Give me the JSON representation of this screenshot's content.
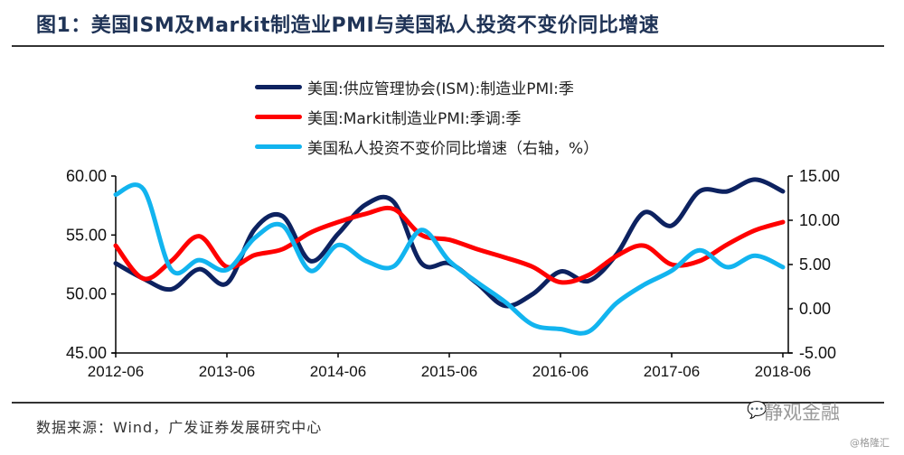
{
  "title": "图1：美国ISM及Markit制造业PMI与美国私人投资不变价同比增速",
  "source": "数据来源：Wind，广发证券发展研究中心",
  "watermark": "静观金融",
  "watermark_icon": "wechat-icon",
  "credit": "@格隆汇",
  "colors": {
    "ism": "#0d2260",
    "markit": "#ff0000",
    "invest": "#12b4ef"
  },
  "chart_data": {
    "type": "line",
    "title": "美国ISM及Markit制造业PMI与美国私人投资不变价同比增速",
    "xlabel": "",
    "ylabel": "",
    "x": [
      "2012-06",
      "2012-09",
      "2012-12",
      "2013-03",
      "2013-06",
      "2013-09",
      "2013-12",
      "2014-03",
      "2014-06",
      "2014-09",
      "2014-12",
      "2015-03",
      "2015-06",
      "2015-09",
      "2015-12",
      "2016-03",
      "2016-06",
      "2016-09",
      "2016-12",
      "2017-03",
      "2017-06",
      "2017-09",
      "2017-12",
      "2018-03",
      "2018-06"
    ],
    "x_tick_labels": [
      "2012-06",
      "2013-06",
      "2014-06",
      "2015-06",
      "2016-06",
      "2017-06",
      "2018-06"
    ],
    "ylim": [
      45,
      60
    ],
    "y_ticks": [
      "45.00",
      "50.00",
      "55.00",
      "60.00"
    ],
    "y2lim": [
      -5,
      15
    ],
    "y2_ticks": [
      "-5.00",
      "0.00",
      "5.00",
      "10.00",
      "15.00"
    ],
    "grid": false,
    "legend_position": "top-center",
    "series": [
      {
        "name": "美国:供应管理协会(ISM):制造业PMI:季",
        "axis": "left",
        "color": "#0d2260",
        "values": [
          52.6,
          51.3,
          50.4,
          52.1,
          50.9,
          55.5,
          56.6,
          52.8,
          55.1,
          57.6,
          57.8,
          52.6,
          52.6,
          50.9,
          49.0,
          50.0,
          51.9,
          51.1,
          53.3,
          56.9,
          55.8,
          58.7,
          58.7,
          59.7,
          58.7
        ]
      },
      {
        "name": "美国:Markit制造业PMI:季调:季",
        "axis": "left",
        "color": "#ff0000",
        "values": [
          54.1,
          51.3,
          52.8,
          54.9,
          52.3,
          53.3,
          53.8,
          55.2,
          56.1,
          56.8,
          57.2,
          55.0,
          54.6,
          53.8,
          53.1,
          52.3,
          51.0,
          51.6,
          53.2,
          54.1,
          52.5,
          52.8,
          54.2,
          55.4,
          56.1
        ]
      },
      {
        "name": "美国私人投资不变价同比增速（右轴，%）",
        "axis": "right",
        "color": "#12b4ef",
        "values": [
          12.9,
          13.5,
          4.4,
          5.5,
          4.4,
          8.0,
          9.4,
          4.3,
          7.2,
          5.4,
          4.8,
          8.9,
          5.4,
          3.0,
          0.8,
          -1.8,
          -2.3,
          -2.6,
          0.6,
          2.7,
          4.3,
          6.6,
          4.7,
          6.0,
          4.7
        ]
      }
    ]
  }
}
